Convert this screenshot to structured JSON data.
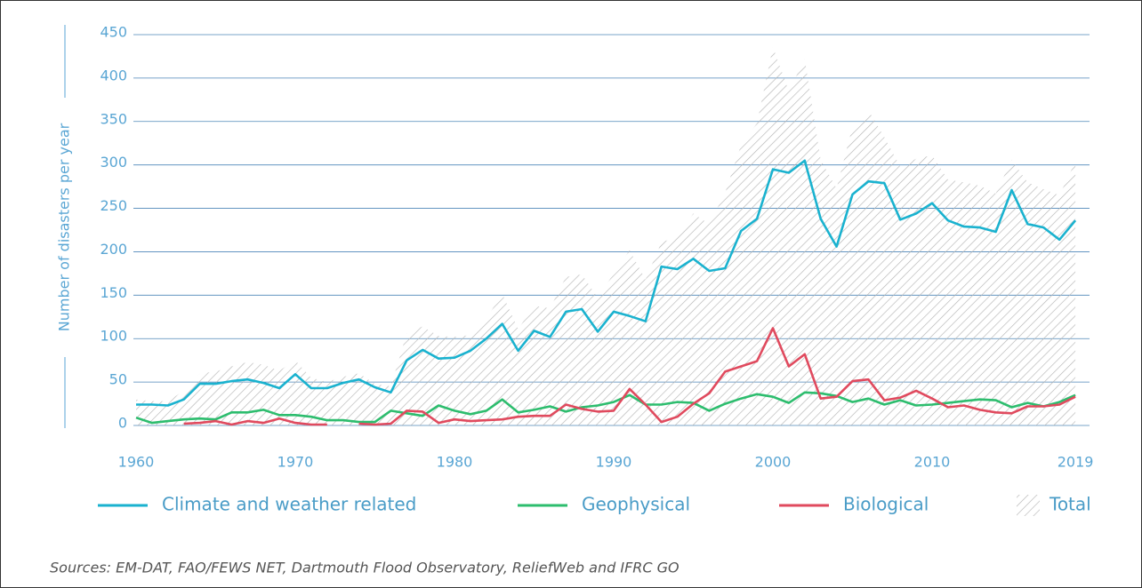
{
  "chart_data": {
    "type": "line",
    "y_label": "Number of disasters per year",
    "source": "Sources: EM-DAT, FAO/FEWS NET, Dartmouth Flood Observatory, ReliefWeb and IFRC GO",
    "x": [
      1960,
      1961,
      1962,
      1963,
      1964,
      1965,
      1966,
      1967,
      1968,
      1969,
      1970,
      1971,
      1972,
      1973,
      1974,
      1975,
      1976,
      1977,
      1978,
      1979,
      1980,
      1981,
      1982,
      1983,
      1984,
      1985,
      1986,
      1987,
      1988,
      1989,
      1990,
      1991,
      1992,
      1993,
      1994,
      1995,
      1996,
      1997,
      1998,
      1999,
      2000,
      2001,
      2002,
      2003,
      2004,
      2005,
      2006,
      2007,
      2008,
      2009,
      2010,
      2011,
      2012,
      2013,
      2014,
      2015,
      2016,
      2017,
      2018,
      2019
    ],
    "xlim": [
      1960,
      2020
    ],
    "xticks": [
      1960,
      1970,
      1980,
      1990,
      2000,
      2010,
      2019
    ],
    "ylim": [
      0,
      450
    ],
    "yticks": [
      0,
      50,
      100,
      150,
      200,
      250,
      300,
      350,
      400,
      450
    ],
    "grid": true,
    "series": [
      {
        "name": "Climate and weather related",
        "color": "#1ab2cf",
        "values": [
          24,
          24,
          23,
          30,
          48,
          48,
          51,
          53,
          49,
          43,
          59,
          43,
          43,
          49,
          53,
          44,
          38,
          75,
          87,
          77,
          78,
          86,
          100,
          117,
          86,
          109,
          102,
          131,
          134,
          108,
          131,
          126,
          120,
          183,
          180,
          192,
          178,
          181,
          224,
          238,
          295,
          291,
          305,
          238,
          206,
          266,
          281,
          279,
          237,
          244,
          256,
          236,
          229,
          228,
          223,
          271,
          232,
          228,
          214,
          236
        ]
      },
      {
        "name": "Geophysical",
        "color": "#2dbd6e",
        "values": [
          9,
          3,
          5,
          7,
          8,
          7,
          15,
          15,
          18,
          12,
          12,
          10,
          6,
          6,
          4,
          4,
          17,
          14,
          11,
          23,
          17,
          13,
          17,
          30,
          15,
          18,
          22,
          16,
          21,
          23,
          27,
          35,
          24,
          24,
          27,
          26,
          17,
          25,
          31,
          36,
          33,
          26,
          38,
          37,
          34,
          27,
          31,
          24,
          29,
          23,
          24,
          26,
          28,
          30,
          29,
          21,
          26,
          22,
          27,
          35
        ]
      },
      {
        "name": "Biological",
        "color": "#e04a5e",
        "values": [
          null,
          null,
          null,
          2,
          3,
          5,
          1,
          5,
          3,
          8,
          3,
          1,
          1,
          null,
          2,
          1,
          2,
          17,
          16,
          3,
          7,
          5,
          6,
          7,
          10,
          11,
          11,
          24,
          19,
          16,
          17,
          42,
          24,
          4,
          10,
          25,
          37,
          62,
          68,
          74,
          112,
          68,
          82,
          31,
          33,
          51,
          53,
          29,
          32,
          40,
          31,
          21,
          23,
          18,
          15,
          14,
          22,
          22,
          24,
          33
        ]
      },
      {
        "name": "Total",
        "color": "#b5b5b5",
        "kind": "hatched-area",
        "values": [
          30,
          28,
          28,
          40,
          60,
          62,
          68,
          73,
          70,
          63,
          75,
          55,
          50,
          56,
          60,
          48,
          45,
          106,
          114,
          103,
          102,
          104,
          123,
          152,
          111,
          138,
          135,
          171,
          174,
          147,
          175,
          202,
          168,
          211,
          217,
          244,
          232,
          268,
          323,
          348,
          436,
          385,
          422,
          306,
          273,
          344,
          363,
          332,
          298,
          307,
          311,
          283,
          280,
          276,
          267,
          306,
          280,
          272,
          265,
          304
        ]
      }
    ]
  }
}
